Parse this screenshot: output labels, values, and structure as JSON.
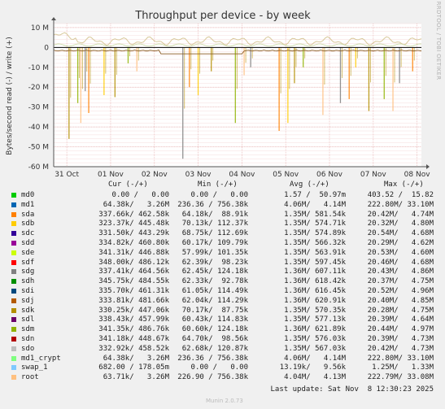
{
  "chart_data": {
    "type": "line",
    "title": "Throughput per device - by week",
    "ylabel": "Bytes/second read (-) / write (+)",
    "side_label": "RRDTOOL / TOBI OETIKER",
    "ylim": [
      -60,
      12
    ],
    "y_ticks": [
      "10 M",
      "0",
      "-10 M",
      "-20 M",
      "-30 M",
      "-40 M",
      "-50 M",
      "-60 M"
    ],
    "y_tick_values": [
      10,
      0,
      -10,
      -20,
      -30,
      -40,
      -50,
      -60
    ],
    "x_ticks": [
      "31 Oct",
      "01 Nov",
      "02 Nov",
      "03 Nov",
      "04 Nov",
      "05 Nov",
      "06 Nov",
      "07 Nov",
      "08 Nov"
    ],
    "x_tick_values": [
      0.3,
      1.3,
      2.3,
      3.3,
      4.3,
      5.3,
      6.3,
      7.3,
      8.3
    ],
    "xlim": [
      0,
      8.4
    ],
    "grid": true,
    "write_band": [
      2.4,
      4.3
    ],
    "read_spikes": [
      [
        0.35,
        -46
      ],
      [
        0.55,
        -28
      ],
      [
        0.62,
        -38
      ],
      [
        0.72,
        -22
      ],
      [
        0.8,
        -33
      ],
      [
        1.15,
        -24
      ],
      [
        1.4,
        -25
      ],
      [
        1.7,
        -8
      ],
      [
        1.9,
        -12
      ],
      [
        2.95,
        -56
      ],
      [
        3.1,
        -20
      ],
      [
        3.3,
        -24
      ],
      [
        3.6,
        -12
      ],
      [
        4.15,
        -38
      ],
      [
        4.35,
        -14
      ],
      [
        4.5,
        -10
      ],
      [
        5.15,
        -42
      ],
      [
        5.35,
        -38
      ],
      [
        5.5,
        -18
      ],
      [
        5.7,
        -10
      ],
      [
        6.15,
        -34
      ],
      [
        6.55,
        -28
      ],
      [
        6.75,
        -26
      ],
      [
        6.9,
        -10
      ],
      [
        7.2,
        -32
      ],
      [
        7.55,
        -26
      ],
      [
        7.75,
        -32
      ],
      [
        7.9,
        -18
      ],
      [
        8.2,
        -12
      ]
    ]
  },
  "legend": {
    "headers": {
      "cur": "Cur (-/+)",
      "min": "Min (-/+)",
      "avg": "Avg (-/+)",
      "max": "Max (-/+)"
    },
    "rows": [
      {
        "name": "md0",
        "color": "#00cc00",
        "cur": "0.00 /   0.00",
        "min": "0.00 /   0.00",
        "avg": "1.57 /  50.97m",
        "max": "403.52 /  15.82"
      },
      {
        "name": "md1",
        "color": "#0066b3",
        "cur": "64.38k/   3.26M",
        "min": "236.36 / 756.38k",
        "avg": "4.06M/   4.14M",
        "max": "222.80M/ 33.10M"
      },
      {
        "name": "sda",
        "color": "#ff8000",
        "cur": "337.66k/ 462.58k",
        "min": "64.18k/  88.91k",
        "avg": "1.35M/ 581.54k",
        "max": "20.42M/   4.74M"
      },
      {
        "name": "sdb",
        "color": "#ffcc00",
        "cur": "323.37k/ 445.48k",
        "min": "70.13k/ 112.37k",
        "avg": "1.35M/ 574.71k",
        "max": "20.32M/   4.80M"
      },
      {
        "name": "sdc",
        "color": "#330099",
        "cur": "331.50k/ 443.29k",
        "min": "68.75k/ 112.69k",
        "avg": "1.35M/ 574.89k",
        "max": "20.54M/   4.68M"
      },
      {
        "name": "sdd",
        "color": "#990099",
        "cur": "334.82k/ 460.80k",
        "min": "60.17k/ 109.79k",
        "avg": "1.35M/ 566.32k",
        "max": "20.29M/   4.62M"
      },
      {
        "name": "sde",
        "color": "#ccff00",
        "cur": "341.31k/ 446.88k",
        "min": "57.99k/ 101.35k",
        "avg": "1.35M/ 563.91k",
        "max": "20.53M/   4.60M"
      },
      {
        "name": "sdf",
        "color": "#ff0000",
        "cur": "348.00k/ 486.12k",
        "min": "62.39k/  98.23k",
        "avg": "1.35M/ 597.45k",
        "max": "20.46M/   4.68M"
      },
      {
        "name": "sdg",
        "color": "#808080",
        "cur": "337.41k/ 464.56k",
        "min": "62.45k/ 124.18k",
        "avg": "1.36M/ 607.11k",
        "max": "20.43M/   4.86M"
      },
      {
        "name": "sdh",
        "color": "#008f00",
        "cur": "345.75k/ 484.55k",
        "min": "62.33k/  92.78k",
        "avg": "1.36M/ 618.42k",
        "max": "20.37M/   4.75M"
      },
      {
        "name": "sdi",
        "color": "#00487d",
        "cur": "335.70k/ 461.31k",
        "min": "61.05k/ 114.49k",
        "avg": "1.36M/ 616.45k",
        "max": "20.52M/   4.96M"
      },
      {
        "name": "sdj",
        "color": "#b35a00",
        "cur": "333.81k/ 481.66k",
        "min": "62.04k/ 114.29k",
        "avg": "1.36M/ 620.91k",
        "max": "20.40M/   4.85M"
      },
      {
        "name": "sdk",
        "color": "#b38f00",
        "cur": "330.25k/ 447.06k",
        "min": "70.17k/  87.75k",
        "avg": "1.35M/ 570.35k",
        "max": "20.28M/   4.75M"
      },
      {
        "name": "sdl",
        "color": "#6b006b",
        "cur": "338.43k/ 457.99k",
        "min": "60.43k/ 114.83k",
        "avg": "1.35M/ 577.13k",
        "max": "20.39M/   4.64M"
      },
      {
        "name": "sdm",
        "color": "#8fb300",
        "cur": "341.35k/ 486.76k",
        "min": "60.60k/ 124.18k",
        "avg": "1.36M/ 621.89k",
        "max": "20.44M/   4.97M"
      },
      {
        "name": "sdn",
        "color": "#b30000",
        "cur": "341.18k/ 448.67k",
        "min": "64.70k/  98.56k",
        "avg": "1.35M/ 576.03k",
        "max": "20.39M/   4.73M"
      },
      {
        "name": "sdo",
        "color": "#bebebe",
        "cur": "332.92k/ 458.52k",
        "min": "62.68k/ 120.87k",
        "avg": "1.35M/ 567.03k",
        "max": "20.42M/   4.73M"
      },
      {
        "name": "md1_crypt",
        "color": "#80ff80",
        "cur": "64.38k/   3.26M",
        "min": "236.36 / 756.38k",
        "avg": "4.06M/   4.14M",
        "max": "222.80M/ 33.10M"
      },
      {
        "name": "swap_1",
        "color": "#80c9ff",
        "cur": "682.00 / 178.05m",
        "min": "0.00 /   0.00",
        "avg": "13.19k/   9.56k",
        "max": "1.25M/   1.33M"
      },
      {
        "name": "root",
        "color": "#ffc080",
        "cur": "63.71k/   3.26M",
        "min": "226.90 / 756.38k",
        "avg": "4.04M/   4.13M",
        "max": "222.79M/ 33.08M"
      }
    ]
  },
  "footer": {
    "last_update": "Last update: Sat Nov  8 12:30:23 2025",
    "version": "Munin 2.0.73"
  }
}
